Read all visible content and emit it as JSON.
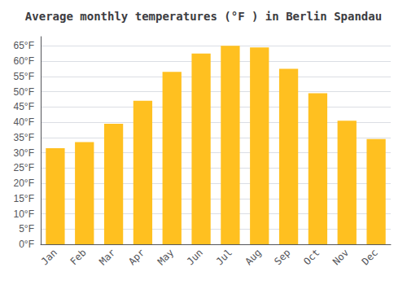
{
  "chart_data": {
    "type": "bar",
    "title": "Average monthly temperatures (°F ) in Berlin Spandau",
    "categories": [
      "Jan",
      "Feb",
      "Mar",
      "Apr",
      "May",
      "Jun",
      "Jul",
      "Aug",
      "Sep",
      "Oct",
      "Nov",
      "Dec"
    ],
    "values": [
      31.5,
      33.5,
      39.5,
      47.0,
      56.5,
      62.5,
      65.0,
      64.5,
      57.5,
      49.5,
      40.5,
      34.5
    ],
    "color": "#FFC020",
    "ylim": [
      0,
      68
    ],
    "yticks": [
      {
        "value": 0,
        "label": "0°F"
      },
      {
        "value": 5,
        "label": "5°F"
      },
      {
        "value": 10,
        "label": "10°F"
      },
      {
        "value": 15,
        "label": "15°F"
      },
      {
        "value": 20,
        "label": "20°F"
      },
      {
        "value": 25,
        "label": "25°F"
      },
      {
        "value": 30,
        "label": "30°F"
      },
      {
        "value": 35,
        "label": "35°F"
      },
      {
        "value": 40,
        "label": "40°F"
      },
      {
        "value": 45,
        "label": "45°F"
      },
      {
        "value": 50,
        "label": "50°F"
      },
      {
        "value": 55,
        "label": "55°F"
      },
      {
        "value": 60,
        "label": "60°F"
      },
      {
        "value": 65,
        "label": "65°F"
      }
    ],
    "grid": true
  }
}
